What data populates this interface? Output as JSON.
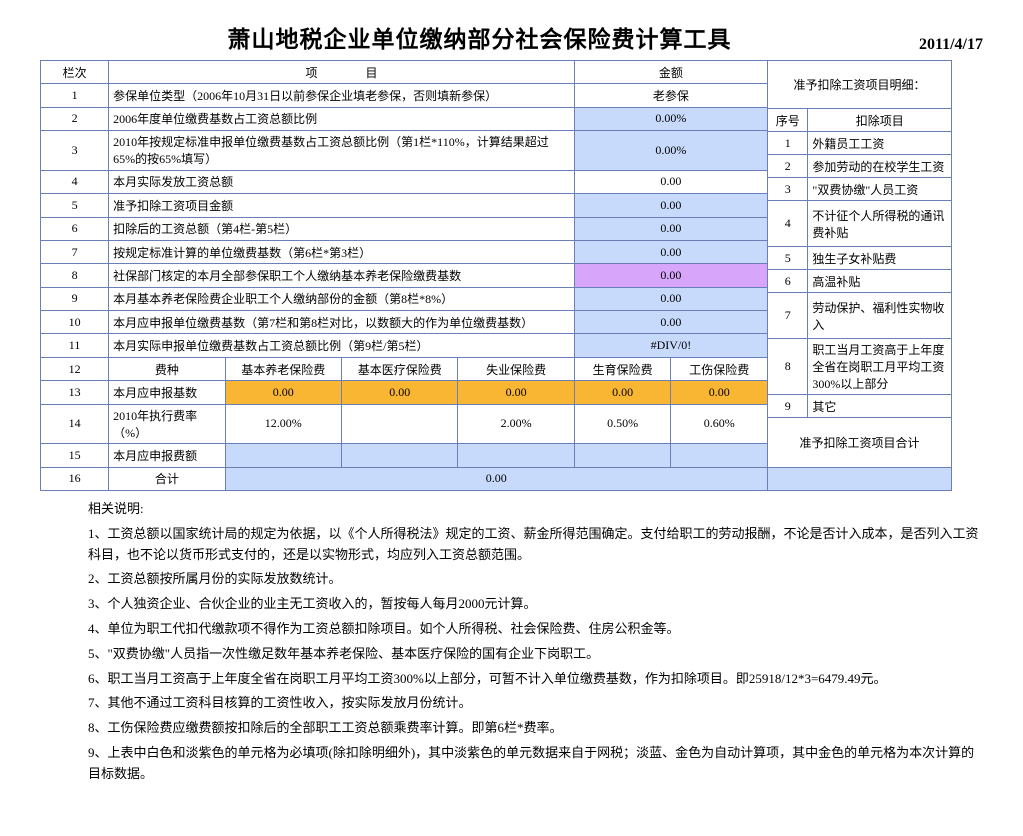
{
  "title": "萧山地税企业单位缴纳部分社会保险费计算工具",
  "date": "2011/4/17",
  "colors": {
    "border": "#6a7eb8",
    "blue": "#c7dafb",
    "purple": "#d7a6fa",
    "orange": "#f8b633",
    "bg": "#ffffff"
  },
  "headers": {
    "col_idx": "栏次",
    "col_proj": "项　　　　目",
    "col_amt": "金额",
    "side_title": "准予扣除工资项目明细：",
    "side_seq": "序号",
    "side_ded": "扣除项目"
  },
  "rows": [
    {
      "n": "1",
      "proj": "参保单位类型（2006年10月31日以前参保企业填老参保，否则填新参保）",
      "amt": "老参保",
      "cls": ""
    },
    {
      "n": "2",
      "proj": "2006年度单位缴费基数占工资总额比例",
      "amt": "0.00%",
      "cls": "blue"
    },
    {
      "n": "3",
      "proj": "2010年按规定标准申报单位缴费基数占工资总额比例（第1栏*110%，计算结果超过65%的按65%填写）",
      "amt": "0.00%",
      "cls": "blue"
    },
    {
      "n": "4",
      "proj": "本月实际发放工资总额",
      "amt": "0.00",
      "cls": ""
    },
    {
      "n": "5",
      "proj": "准予扣除工资项目金额",
      "amt": "0.00",
      "cls": "blue"
    },
    {
      "n": "6",
      "proj": "扣除后的工资总额（第4栏-第5栏）",
      "amt": "0.00",
      "cls": "blue"
    },
    {
      "n": "7",
      "proj": "按规定标准计算的单位缴费基数（第6栏*第3栏）",
      "amt": "0.00",
      "cls": "blue"
    },
    {
      "n": "8",
      "proj": "社保部门核定的本月全部参保职工个人缴纳基本养老保险缴费基数",
      "amt": "0.00",
      "cls": "purple"
    },
    {
      "n": "9",
      "proj": "本月基本养老保险费企业职工个人缴纳部份的金额（第8栏*8%）",
      "amt": "0.00",
      "cls": "blue"
    },
    {
      "n": "10",
      "proj": "本月应申报单位缴费基数（第7栏和第8栏对比，以数额大的作为单位缴费基数）",
      "amt": "0.00",
      "cls": "blue"
    },
    {
      "n": "11",
      "proj": "本月实际申报单位缴费基数占工资总额比例（第9栏/第5栏）",
      "amt": "#DIV/0!",
      "cls": "blue"
    }
  ],
  "row12": {
    "n": "12",
    "label": "费种",
    "c1": "基本养老保险费",
    "c2": "基本医疗保险费",
    "c3": "失业保险费",
    "c4": "生育保险费",
    "c5": "工伤保险费"
  },
  "row13": {
    "n": "13",
    "label": "本月应申报基数",
    "v1": "0.00",
    "v2": "0.00",
    "v3": "0.00",
    "v4": "0.00",
    "v5": "0.00"
  },
  "row14": {
    "n": "14",
    "label": "2010年执行费率（%）",
    "v1": "12.00%",
    "v2": "",
    "v3": "2.00%",
    "v4": "0.50%",
    "v5": "0.60%"
  },
  "row15": {
    "n": "15",
    "label": "本月应申报费额",
    "v1": "",
    "v2": "",
    "v3": "",
    "v4": "",
    "v5": ""
  },
  "row16": {
    "n": "16",
    "label": "合计",
    "val": "0.00"
  },
  "side_rows": [
    {
      "n": "1",
      "t": "外籍员工工资"
    },
    {
      "n": "2",
      "t": "参加劳动的在校学生工资"
    },
    {
      "n": "3",
      "t": "\"双费协缴\"人员工资"
    },
    {
      "n": "4",
      "t": "不计征个人所得税的通讯费补贴",
      "span": 2
    },
    {
      "n": "5",
      "t": "独生子女补贴费"
    },
    {
      "n": "6",
      "t": "高温补贴"
    },
    {
      "n": "7",
      "t": "劳动保护、福利性实物收入",
      "span": 2
    },
    {
      "n": "8",
      "t": "职工当月工资高于上年度全省在岗职工月平均工资300%以上部分",
      "span": 2
    },
    {
      "n": "9",
      "t": "其它"
    }
  ],
  "side_total": "准予扣除工资项目合计",
  "notes_title": "相关说明:",
  "notes": [
    "1、工资总额以国家统计局的规定为依据，以《个人所得税法》规定的工资、薪金所得范围确定。支付给职工的劳动报酬，不论是否计入成本，是否列入工资科目，也不论以货币形式支付的，还是以实物形式，均应列入工资总额范围。",
    "2、工资总额按所属月份的实际发放数统计。",
    "3、个人独资企业、合伙企业的业主无工资收入的，暂按每人每月2000元计算。",
    "4、单位为职工代扣代缴款项不得作为工资总额扣除项目。如个人所得税、社会保险费、住房公积金等。",
    "5、\"双费协缴\"人员指一次性缴足数年基本养老保险、基本医疗保险的国有企业下岗职工。",
    "6、职工当月工资高于上年度全省在岗职工月平均工资300%以上部分，可暂不计入单位缴费基数，作为扣除项目。即25918/12*3=6479.49元。",
    "7、其他不通过工资科目核算的工资性收入，按实际发放月份统计。",
    "8、工伤保险费应缴费额按扣除后的全部职工工资总额乘费率计算。即第6栏*费率。",
    "9、上表中白色和淡紫色的单元格为必填项(除扣除明细外)，其中淡紫色的单元数据来自于网税；淡蓝、金色为自动计算项，其中金色的单元格为本次计算的目标数据。"
  ]
}
